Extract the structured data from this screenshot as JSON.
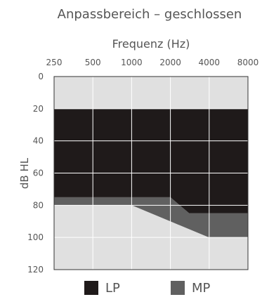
{
  "chart_data": {
    "type": "area",
    "title": "Anpassbereich – geschlossen",
    "xlabel": "Frequenz (Hz)",
    "ylabel": "dB HL",
    "x_ticks": [
      "250",
      "500",
      "1000",
      "2000",
      "4000",
      "8000"
    ],
    "y_ticks": [
      "0",
      "20",
      "40",
      "60",
      "80",
      "100",
      "120"
    ],
    "ylim": [
      0,
      120
    ],
    "y_inverted": true,
    "x_scale": "log",
    "x_axis_position": "top",
    "grid": true,
    "legend_position": "bottom",
    "background_color": "#e0e0e0",
    "series": [
      {
        "name": "MP",
        "color": "#606060",
        "upper": {
          "x": [
            250,
            500,
            1000,
            2000,
            2800,
            4000,
            8000
          ],
          "y": [
            75,
            75,
            75,
            75,
            85,
            85,
            85
          ]
        },
        "lower": {
          "x": [
            250,
            500,
            1000,
            2000,
            4000,
            8000
          ],
          "y": [
            80,
            80,
            80,
            90,
            100,
            100
          ]
        }
      },
      {
        "name": "LP",
        "color": "#1f1a1a",
        "upper": {
          "x": [
            250,
            8000
          ],
          "y": [
            20,
            20
          ]
        },
        "lower": {
          "x": [
            250,
            500,
            1000,
            2000,
            2800,
            4000,
            8000
          ],
          "y": [
            75,
            75,
            75,
            75,
            85,
            85,
            85
          ]
        }
      }
    ]
  },
  "legend": {
    "lp_label": "LP",
    "lp_color": "#1f1a1a",
    "mp_label": "MP",
    "mp_color": "#606060"
  }
}
